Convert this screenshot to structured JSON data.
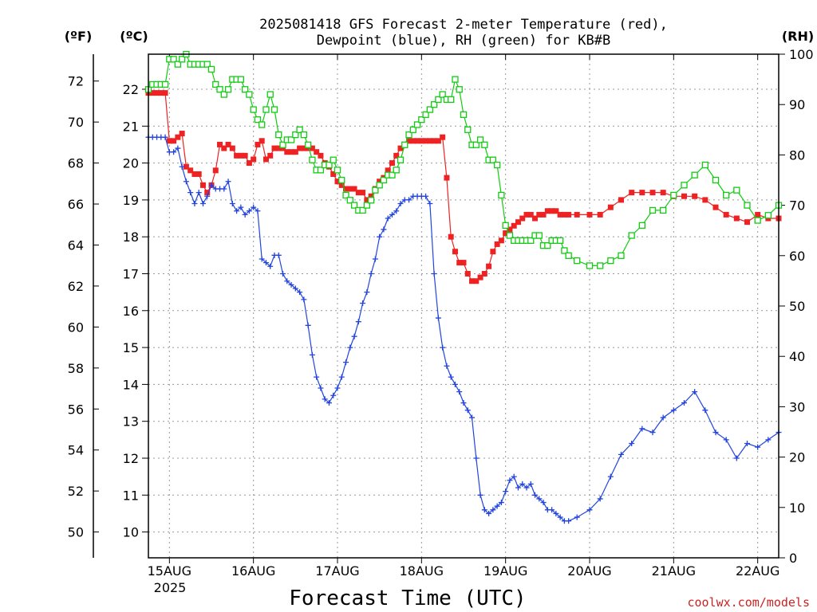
{
  "chart_data": {
    "type": "line",
    "title": [
      "2025081418 GFS Forecast 2-meter Temperature (red),",
      "Dewpoint (blue), RH (green) for KB#B"
    ],
    "xlabel": "Forecast Time (UTC)",
    "x_ticks": [
      "15AUG",
      "16AUG",
      "17AUG",
      "18AUG",
      "19AUG",
      "20AUG",
      "21AUG",
      "22AUG"
    ],
    "x_year_label": "2025",
    "x_range_days": [
      -0.25,
      7.25
    ],
    "left_unit_label": "(ºC)",
    "outer_unit_label": "(ºF)",
    "right_unit_label": "(RH)",
    "c_ticks": [
      10,
      11,
      12,
      13,
      14,
      15,
      16,
      17,
      18,
      19,
      20,
      21,
      22
    ],
    "c_range": [
      9.3,
      22.95
    ],
    "f_ticks": [
      50,
      52,
      54,
      56,
      58,
      60,
      62,
      64,
      66,
      68,
      70,
      72
    ],
    "rh_ticks": [
      0,
      10,
      20,
      30,
      40,
      50,
      60,
      70,
      80,
      90,
      100
    ],
    "rh_range": [
      0,
      100
    ],
    "grid": true,
    "credit": "coolwx.com/models",
    "colors": {
      "temperature": "#ee2222",
      "dewpoint": "#2244dd",
      "rh": "#11cc11",
      "grid": "#999999",
      "credit": "#cc2222"
    },
    "series": [
      {
        "key": "temperature",
        "x": [
          -0.25,
          -0.2,
          -0.15,
          -0.1,
          -0.05,
          0,
          0.05,
          0.1,
          0.15,
          0.2,
          0.25,
          0.3,
          0.35,
          0.4,
          0.45,
          0.5,
          0.55,
          0.6,
          0.65,
          0.7,
          0.75,
          0.8,
          0.85,
          0.9,
          0.95,
          1.0,
          1.05,
          1.1,
          1.15,
          1.2,
          1.25,
          1.3,
          1.35,
          1.4,
          1.45,
          1.5,
          1.55,
          1.6,
          1.65,
          1.7,
          1.75,
          1.8,
          1.85,
          1.9,
          1.95,
          2.0,
          2.05,
          2.1,
          2.15,
          2.2,
          2.25,
          2.3,
          2.35,
          2.4,
          2.45,
          2.5,
          2.55,
          2.6,
          2.65,
          2.7,
          2.75,
          2.8,
          2.85,
          2.9,
          2.95,
          3.0,
          3.05,
          3.1,
          3.15,
          3.2,
          3.25,
          3.3,
          3.35,
          3.4,
          3.45,
          3.5,
          3.55,
          3.6,
          3.65,
          3.7,
          3.75,
          3.8,
          3.85,
          3.9,
          3.95,
          4.0,
          4.05,
          4.1,
          4.15,
          4.2,
          4.25,
          4.3,
          4.35,
          4.4,
          4.45,
          4.5,
          4.55,
          4.6,
          4.65,
          4.7,
          4.75,
          4.85,
          5.0,
          5.125,
          5.25,
          5.375,
          5.5,
          5.625,
          5.75,
          5.875,
          6.0,
          6.125,
          6.25,
          6.375,
          6.5,
          6.625,
          6.75,
          6.875,
          7.0,
          7.125,
          7.25
        ],
        "values": [
          21.9,
          21.9,
          21.9,
          21.9,
          21.9,
          20.6,
          20.6,
          20.7,
          20.8,
          19.9,
          19.8,
          19.7,
          19.7,
          19.4,
          19.2,
          19.4,
          19.8,
          20.5,
          20.4,
          20.5,
          20.4,
          20.2,
          20.2,
          20.2,
          20.0,
          20.1,
          20.5,
          20.6,
          20.1,
          20.2,
          20.4,
          20.4,
          20.4,
          20.3,
          20.3,
          20.3,
          20.4,
          20.4,
          20.4,
          20.4,
          20.3,
          20.2,
          20.0,
          19.9,
          19.7,
          19.5,
          19.4,
          19.3,
          19.3,
          19.3,
          19.2,
          19.2,
          19.0,
          19.1,
          19.3,
          19.5,
          19.6,
          19.8,
          20.0,
          20.2,
          20.4,
          20.5,
          20.6,
          20.6,
          20.6,
          20.6,
          20.6,
          20.6,
          20.6,
          20.6,
          20.7,
          19.6,
          18.0,
          17.6,
          17.3,
          17.3,
          17.0,
          16.8,
          16.8,
          16.9,
          17.0,
          17.2,
          17.6,
          17.8,
          17.9,
          18.1,
          18.2,
          18.3,
          18.4,
          18.5,
          18.6,
          18.6,
          18.5,
          18.6,
          18.6,
          18.7,
          18.7,
          18.7,
          18.6,
          18.6,
          18.6,
          18.6,
          18.6,
          18.6,
          18.8,
          19.0,
          19.2,
          19.2,
          19.2,
          19.2,
          19.1,
          19.1,
          19.1,
          19.0,
          18.8,
          18.6,
          18.5,
          18.4,
          18.6,
          18.5,
          18.5
        ]
      },
      {
        "key": "dewpoint",
        "x": [
          -0.25,
          -0.2,
          -0.15,
          -0.1,
          -0.05,
          0,
          0.05,
          0.1,
          0.15,
          0.2,
          0.25,
          0.3,
          0.35,
          0.4,
          0.45,
          0.5,
          0.55,
          0.6,
          0.65,
          0.7,
          0.75,
          0.8,
          0.85,
          0.9,
          0.95,
          1.0,
          1.05,
          1.1,
          1.15,
          1.2,
          1.25,
          1.3,
          1.35,
          1.4,
          1.45,
          1.5,
          1.55,
          1.6,
          1.65,
          1.7,
          1.75,
          1.8,
          1.85,
          1.9,
          1.95,
          2.0,
          2.05,
          2.1,
          2.15,
          2.2,
          2.25,
          2.3,
          2.35,
          2.4,
          2.45,
          2.5,
          2.55,
          2.6,
          2.65,
          2.7,
          2.75,
          2.8,
          2.85,
          2.9,
          2.95,
          3.0,
          3.05,
          3.1,
          3.15,
          3.2,
          3.25,
          3.3,
          3.35,
          3.4,
          3.45,
          3.5,
          3.55,
          3.6,
          3.65,
          3.7,
          3.75,
          3.8,
          3.85,
          3.9,
          3.95,
          4.0,
          4.05,
          4.1,
          4.15,
          4.2,
          4.25,
          4.3,
          4.35,
          4.4,
          4.45,
          4.5,
          4.55,
          4.6,
          4.65,
          4.7,
          4.75,
          4.85,
          5.0,
          5.125,
          5.25,
          5.375,
          5.5,
          5.625,
          5.75,
          5.875,
          6.0,
          6.125,
          6.25,
          6.375,
          6.5,
          6.625,
          6.75,
          6.875,
          7.0,
          7.125,
          7.25
        ],
        "values": [
          20.7,
          20.7,
          20.7,
          20.7,
          20.7,
          20.3,
          20.3,
          20.4,
          19.9,
          19.5,
          19.2,
          18.9,
          19.2,
          18.9,
          19.1,
          19.4,
          19.3,
          19.3,
          19.3,
          19.5,
          18.9,
          18.7,
          18.8,
          18.6,
          18.7,
          18.8,
          18.7,
          17.4,
          17.3,
          17.2,
          17.5,
          17.5,
          17.0,
          16.8,
          16.7,
          16.6,
          16.5,
          16.3,
          15.6,
          14.8,
          14.2,
          13.9,
          13.6,
          13.5,
          13.7,
          13.9,
          14.2,
          14.6,
          15.0,
          15.3,
          15.7,
          16.2,
          16.5,
          17.0,
          17.4,
          18.0,
          18.2,
          18.5,
          18.6,
          18.7,
          18.9,
          19.0,
          19.0,
          19.1,
          19.1,
          19.1,
          19.1,
          18.9,
          17.0,
          15.8,
          15.0,
          14.5,
          14.2,
          14.0,
          13.8,
          13.5,
          13.3,
          13.1,
          12.0,
          11.0,
          10.6,
          10.5,
          10.6,
          10.7,
          10.8,
          11.1,
          11.4,
          11.5,
          11.2,
          11.3,
          11.2,
          11.3,
          11.0,
          10.9,
          10.8,
          10.6,
          10.6,
          10.5,
          10.4,
          10.3,
          10.3,
          10.4,
          10.6,
          10.9,
          11.5,
          12.1,
          12.4,
          12.8,
          12.7,
          13.1,
          13.3,
          13.5,
          13.8,
          13.3,
          12.7,
          12.5,
          12.0,
          12.4,
          12.3,
          12.5,
          12.7
        ]
      },
      {
        "key": "rh",
        "x": [
          -0.25,
          -0.2,
          -0.15,
          -0.1,
          -0.05,
          0,
          0.05,
          0.1,
          0.15,
          0.2,
          0.25,
          0.3,
          0.35,
          0.4,
          0.45,
          0.5,
          0.55,
          0.6,
          0.65,
          0.7,
          0.75,
          0.8,
          0.85,
          0.9,
          0.95,
          1.0,
          1.05,
          1.1,
          1.15,
          1.2,
          1.25,
          1.3,
          1.35,
          1.4,
          1.45,
          1.5,
          1.55,
          1.6,
          1.65,
          1.7,
          1.75,
          1.8,
          1.85,
          1.9,
          1.95,
          2.0,
          2.05,
          2.1,
          2.15,
          2.2,
          2.25,
          2.3,
          2.35,
          2.4,
          2.45,
          2.5,
          2.55,
          2.6,
          2.65,
          2.7,
          2.75,
          2.8,
          2.85,
          2.9,
          2.95,
          3.0,
          3.05,
          3.1,
          3.15,
          3.2,
          3.25,
          3.3,
          3.35,
          3.4,
          3.45,
          3.5,
          3.55,
          3.6,
          3.65,
          3.7,
          3.75,
          3.8,
          3.85,
          3.9,
          3.95,
          4.0,
          4.05,
          4.1,
          4.15,
          4.2,
          4.25,
          4.3,
          4.35,
          4.4,
          4.45,
          4.5,
          4.55,
          4.6,
          4.65,
          4.7,
          4.75,
          4.85,
          5.0,
          5.125,
          5.25,
          5.375,
          5.5,
          5.625,
          5.75,
          5.875,
          6.0,
          6.125,
          6.25,
          6.375,
          6.5,
          6.625,
          6.75,
          6.875,
          7.0,
          7.125,
          7.25
        ],
        "values": [
          93,
          94,
          94,
          94,
          94,
          99,
          99,
          98,
          99,
          100,
          98,
          98,
          98,
          98,
          98,
          97,
          94,
          93,
          92,
          93,
          95,
          95,
          95,
          93,
          92,
          89,
          87,
          86,
          89,
          92,
          89,
          84,
          82,
          83,
          83,
          84,
          85,
          84,
          82,
          79,
          77,
          77,
          78,
          78,
          79,
          77,
          75,
          72,
          71,
          70,
          69,
          69,
          70,
          71,
          73,
          74,
          75,
          76,
          76,
          77,
          79,
          82,
          84,
          85,
          86,
          87,
          88,
          89,
          90,
          91,
          92,
          91,
          91,
          95,
          93,
          88,
          85,
          82,
          82,
          83,
          82,
          79,
          79,
          78,
          72,
          66,
          64,
          63,
          63,
          63,
          63,
          63,
          64,
          64,
          62,
          62,
          63,
          63,
          63,
          61,
          60,
          59,
          58,
          58,
          59,
          60,
          64,
          66,
          69,
          69,
          72,
          74,
          76,
          78,
          75,
          72,
          73,
          70,
          67,
          68,
          70
        ]
      }
    ]
  }
}
